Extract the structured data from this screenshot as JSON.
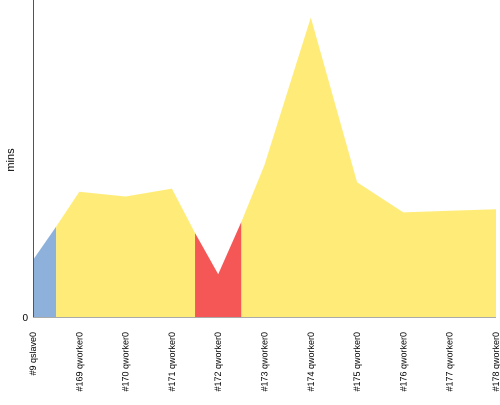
{
  "chart_data": {
    "type": "area",
    "title": "",
    "xlabel": "",
    "ylabel": "mins",
    "y_tick_labels": [
      "0"
    ],
    "ylim": [
      0,
      100
    ],
    "categories": [
      "#9 qslave0",
      "#169 qworker0",
      "#170 qworker0",
      "#171 qworker0",
      "#172 qworker0",
      "#173 qworker0",
      "#174 qworker0",
      "#175 qworker0",
      "#176 qworker0",
      "#177 qworker0",
      "#178 qworker0"
    ],
    "points": [
      {
        "x": 0,
        "y": 18
      },
      {
        "x": 0.5,
        "y": 28.5
      },
      {
        "x": 1,
        "y": 39.5
      },
      {
        "x": 2,
        "y": 38
      },
      {
        "x": 3,
        "y": 40.5
      },
      {
        "x": 3.5,
        "y": 26.5
      },
      {
        "x": 4,
        "y": 13.5
      },
      {
        "x": 4.5,
        "y": 30
      },
      {
        "x": 5,
        "y": 48
      },
      {
        "x": 6,
        "y": 94.5
      },
      {
        "x": 7,
        "y": 42.5
      },
      {
        "x": 8,
        "y": 33
      },
      {
        "x": 9,
        "y": 33.5
      },
      {
        "x": 10,
        "y": 34
      }
    ],
    "segments": [
      {
        "from": 0,
        "to": 0.5,
        "color": "#8eb1dc"
      },
      {
        "from": 0.5,
        "to": 3.5,
        "color": "#ffec78"
      },
      {
        "from": 3.5,
        "to": 4.5,
        "color": "#f55656"
      },
      {
        "from": 4.5,
        "to": 10,
        "color": "#ffec78"
      }
    ],
    "grid": false,
    "legend": "none"
  }
}
